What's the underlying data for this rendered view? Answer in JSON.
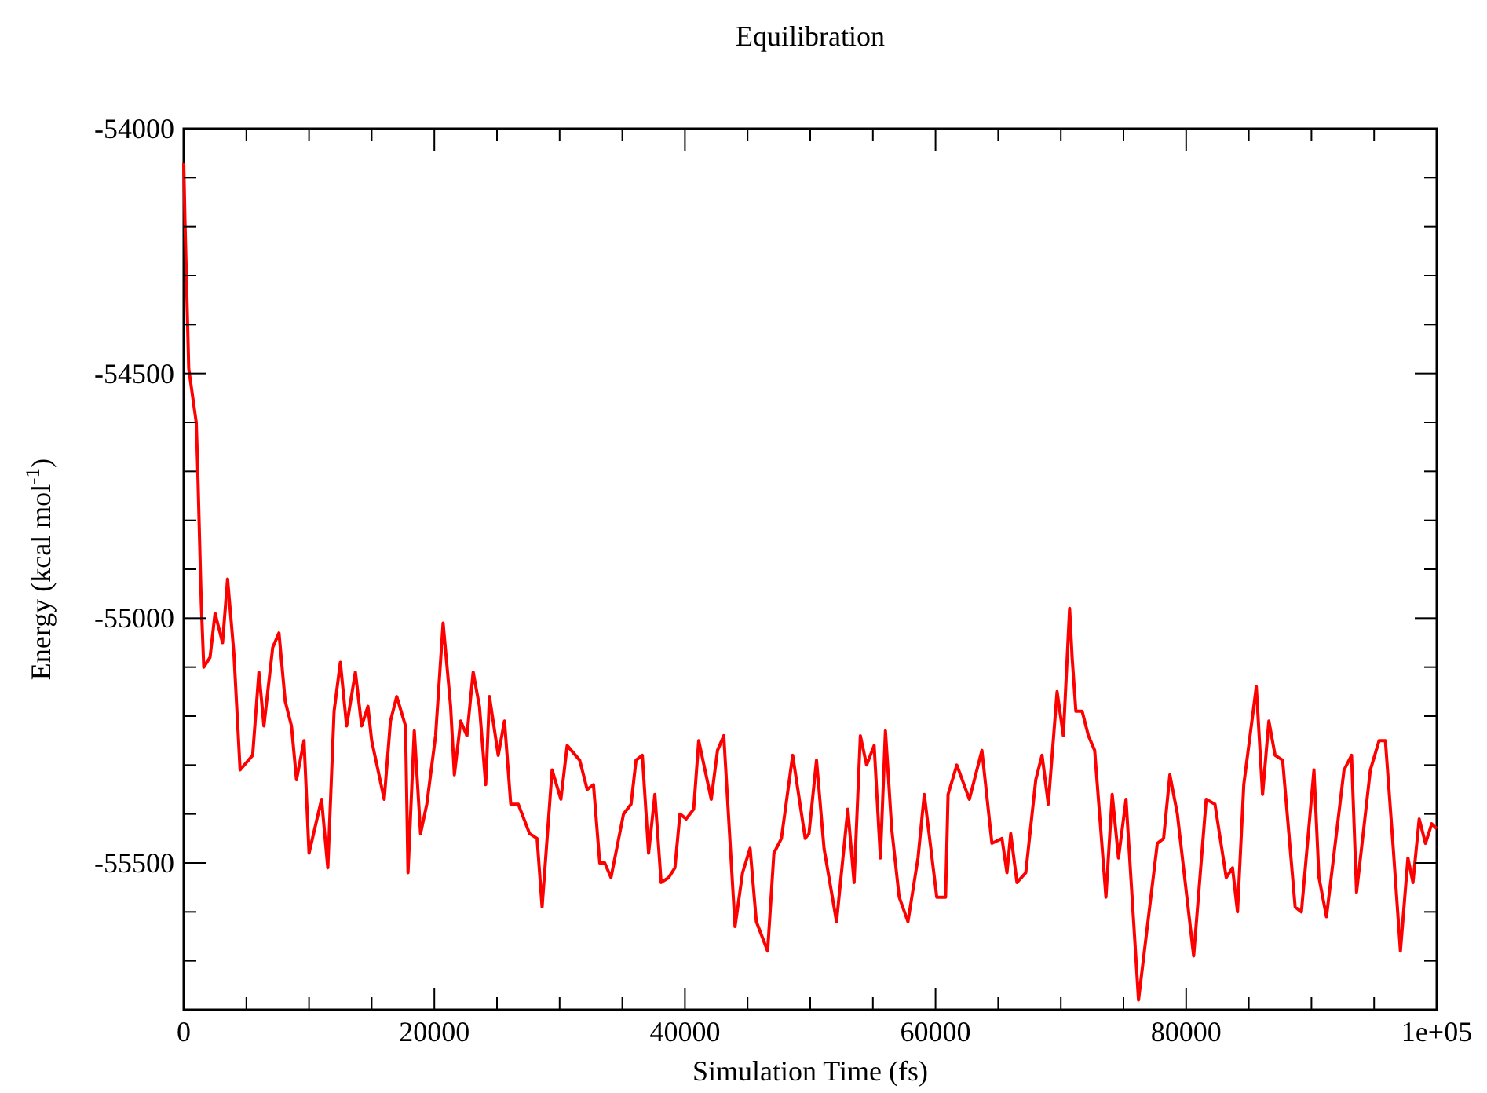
{
  "chart_data": {
    "type": "line",
    "title": "Equilibration",
    "xlabel": "Simulation Time (fs)",
    "ylabel": "Energy (kcal mol$^{-1}$)",
    "xlim": [
      0,
      100000
    ],
    "ylim": [
      -55800,
      -54000
    ],
    "xticks": [
      0,
      {
        "value": 5000,
        "label": null
      },
      {
        "value": 10000,
        "label": null
      },
      {
        "value": 15000,
        "label": null
      },
      20000,
      {
        "value": 25000,
        "label": null
      },
      {
        "value": 30000,
        "label": null
      },
      {
        "value": 35000,
        "label": null
      },
      40000,
      {
        "value": 45000,
        "label": null
      },
      {
        "value": 50000,
        "label": null
      },
      {
        "value": 55000,
        "label": null
      },
      60000,
      {
        "value": 65000,
        "label": null
      },
      {
        "value": 70000,
        "label": null
      },
      {
        "value": 75000,
        "label": null
      },
      80000,
      {
        "value": 85000,
        "label": null
      },
      {
        "value": 90000,
        "label": null
      },
      {
        "value": 95000,
        "label": null
      },
      {
        "value": 100000,
        "label": "1e+05"
      }
    ],
    "yticks": [
      {
        "value": -55800,
        "label": null
      },
      {
        "value": -55700,
        "label": null
      },
      {
        "value": -55600,
        "label": null
      },
      -55500,
      {
        "value": -55400,
        "label": null
      },
      {
        "value": -55300,
        "label": null
      },
      {
        "value": -55200,
        "label": null
      },
      {
        "value": -55100,
        "label": null
      },
      -55000,
      {
        "value": -54900,
        "label": null
      },
      {
        "value": -54800,
        "label": null
      },
      {
        "value": -54700,
        "label": null
      },
      {
        "value": -54600,
        "label": null
      },
      -54500,
      {
        "value": -54400,
        "label": null
      },
      {
        "value": -54300,
        "label": null
      },
      {
        "value": -54200,
        "label": null
      },
      {
        "value": -54100,
        "label": null
      },
      -54000
    ],
    "grid": false,
    "marker": "none",
    "line_style": "solid",
    "x": [
      0,
      100,
      400,
      1000,
      1100,
      1400,
      1600,
      2100,
      2500,
      3100,
      3500,
      4000,
      4500,
      5500,
      6000,
      6400,
      7100,
      7600,
      8100,
      8600,
      9000,
      9600,
      10000,
      11000,
      11500,
      12000,
      12500,
      13000,
      13700,
      14200,
      14700,
      15000,
      16000,
      16500,
      17000,
      17700,
      17900,
      18400,
      18900,
      19400,
      20100,
      20700,
      21300,
      21600,
      22100,
      22600,
      23100,
      23600,
      24100,
      24400,
      25100,
      25600,
      26100,
      26700,
      27600,
      28200,
      28600,
      29400,
      30100,
      30600,
      31600,
      32200,
      32700,
      33200,
      33600,
      34100,
      35100,
      35700,
      36100,
      36600,
      37100,
      37600,
      38100,
      38700,
      39200,
      39600,
      40100,
      40700,
      41100,
      42100,
      42600,
      43100,
      44000,
      44600,
      45200,
      45700,
      46600,
      47100,
      47700,
      48600,
      49600,
      49900,
      50500,
      51100,
      52100,
      53000,
      53500,
      54000,
      54500,
      55100,
      55600,
      56000,
      56500,
      57100,
      57800,
      58600,
      59100,
      60100,
      60800,
      61000,
      61700,
      62700,
      63700,
      64500,
      65300,
      65700,
      66000,
      66500,
      67200,
      68000,
      68500,
      69000,
      69700,
      70200,
      70700,
      70900,
      71200,
      71700,
      72200,
      72700,
      73600,
      74100,
      74600,
      75200,
      76200,
      77700,
      78200,
      78700,
      79300,
      80600,
      81600,
      82300,
      83200,
      83700,
      84100,
      84600,
      85600,
      86100,
      86600,
      87100,
      87700,
      88700,
      89200,
      90200,
      90600,
      91200,
      92600,
      93200,
      93600,
      94700,
      95400,
      95900,
      96500,
      97100,
      97700,
      98100,
      98600,
      99100,
      99600,
      100000
    ],
    "series": [
      {
        "color": "#ff0000",
        "values": [
          -54070,
          -54190,
          -54490,
          -54600,
          -54680,
          -54970,
          -55100,
          -55080,
          -54990,
          -55050,
          -54920,
          -55070,
          -55310,
          -55280,
          -55110,
          -55220,
          -55060,
          -55030,
          -55170,
          -55220,
          -55330,
          -55250,
          -55480,
          -55370,
          -55510,
          -55190,
          -55090,
          -55220,
          -55110,
          -55220,
          -55180,
          -55250,
          -55370,
          -55210,
          -55160,
          -55220,
          -55520,
          -55230,
          -55440,
          -55380,
          -55240,
          -55010,
          -55180,
          -55320,
          -55210,
          -55240,
          -55110,
          -55180,
          -55340,
          -55160,
          -55280,
          -55210,
          -55380,
          -55380,
          -55440,
          -55450,
          -55590,
          -55310,
          -55370,
          -55260,
          -55290,
          -55350,
          -55340,
          -55500,
          -55500,
          -55530,
          -55400,
          -55380,
          -55290,
          -55280,
          -55480,
          -55360,
          -55540,
          -55530,
          -55510,
          -55400,
          -55410,
          -55390,
          -55250,
          -55370,
          -55270,
          -55240,
          -55630,
          -55520,
          -55470,
          -55620,
          -55680,
          -55480,
          -55450,
          -55280,
          -55450,
          -55440,
          -55290,
          -55470,
          -55620,
          -55390,
          -55540,
          -55240,
          -55300,
          -55260,
          -55490,
          -55230,
          -55430,
          -55570,
          -55620,
          -55490,
          -55360,
          -55570,
          -55570,
          -55360,
          -55300,
          -55370,
          -55270,
          -55460,
          -55450,
          -55520,
          -55440,
          -55540,
          -55520,
          -55330,
          -55280,
          -55380,
          -55150,
          -55240,
          -54980,
          -55080,
          -55190,
          -55190,
          -55240,
          -55270,
          -55570,
          -55360,
          -55490,
          -55370,
          -55780,
          -55460,
          -55450,
          -55320,
          -55400,
          -55690,
          -55370,
          -55380,
          -55530,
          -55510,
          -55600,
          -55340,
          -55140,
          -55360,
          -55210,
          -55280,
          -55290,
          -55590,
          -55600,
          -55310,
          -55530,
          -55610,
          -55310,
          -55280,
          -55560,
          -55310,
          -55250,
          -55250,
          -55460,
          -55680,
          -55490,
          -55540,
          -55410,
          -55460,
          -55420,
          -55430
        ]
      }
    ]
  }
}
